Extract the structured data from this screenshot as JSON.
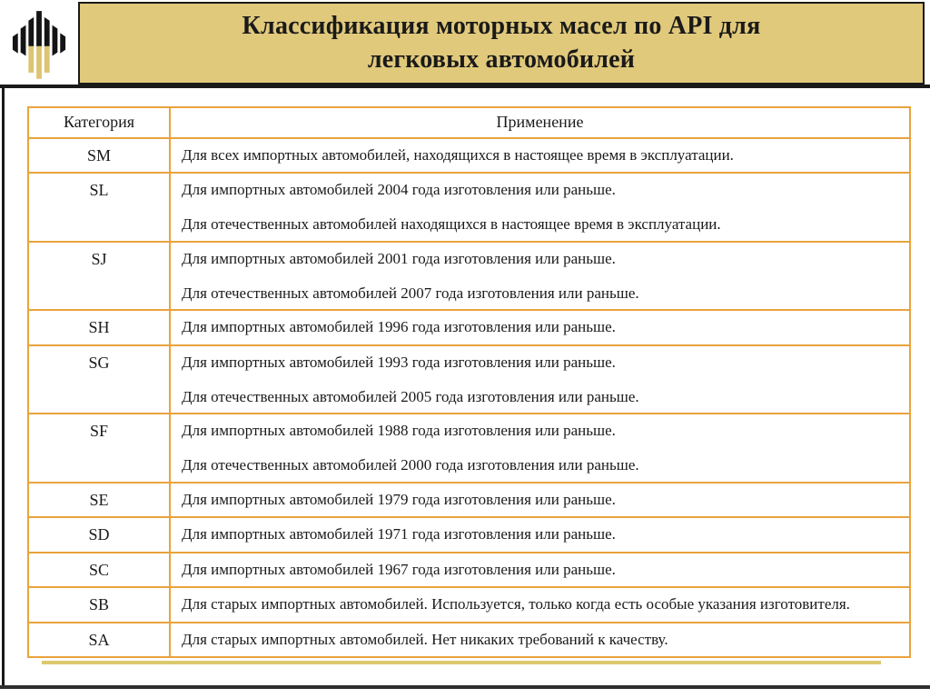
{
  "slide": {
    "title": "Классификация моторных масел по API для\nлегковых автомобилей"
  },
  "logo": {
    "name": "rosneft-logo"
  },
  "colors": {
    "title-band": "#e0c97b",
    "table-border": "#e9a33c",
    "footer-line": "#dcc96e",
    "frame-line": "#1a1a1a",
    "bottom-line": "#2e2e2e",
    "text": "#1a1a1a",
    "logo-black": "#141414",
    "logo-gold": "#dcc472"
  },
  "table": {
    "headers": [
      "Категория",
      "Применение"
    ],
    "rows": [
      {
        "category": "SM",
        "applications": [
          "Для всех импортных автомобилей, находящихся в настоящее время в эксплуатации."
        ]
      },
      {
        "category": "SL",
        "applications": [
          "Для импортных автомобилей 2004 года изготовления или раньше.",
          "Для отечественных автомобилей находящихся в настоящее время в эксплуатации."
        ]
      },
      {
        "category": "SJ",
        "applications": [
          "Для импортных автомобилей 2001 года изготовления или раньше.",
          "Для отечественных автомобилей 2007 года изготовления или раньше."
        ]
      },
      {
        "category": "SH",
        "applications": [
          "Для импортных автомобилей 1996 года изготовления или раньше."
        ]
      },
      {
        "category": "SG",
        "applications": [
          "Для импортных автомобилей 1993 года изготовления или раньше.",
          "Для отечественных автомобилей 2005 года изготовления или раньше."
        ]
      },
      {
        "category": "SF",
        "applications": [
          "Для импортных автомобилей 1988 года изготовления или раньше.",
          "Для отечественных автомобилей 2000 года изготовления или раньше."
        ]
      },
      {
        "category": "SE",
        "applications": [
          "Для импортных автомобилей 1979 года изготовления или раньше."
        ]
      },
      {
        "category": "SD",
        "applications": [
          "Для импортных автомобилей 1971 года изготовления или раньше."
        ]
      },
      {
        "category": "SC",
        "applications": [
          "Для импортных автомобилей 1967 года изготовления или раньше."
        ]
      },
      {
        "category": "SB",
        "applications": [
          "Для старых импортных автомобилей. Используется, только когда есть особые указания изготовителя."
        ]
      },
      {
        "category": "SA",
        "applications": [
          "Для старых импортных автомобилей. Нет никаких требований к качеству."
        ]
      }
    ]
  }
}
